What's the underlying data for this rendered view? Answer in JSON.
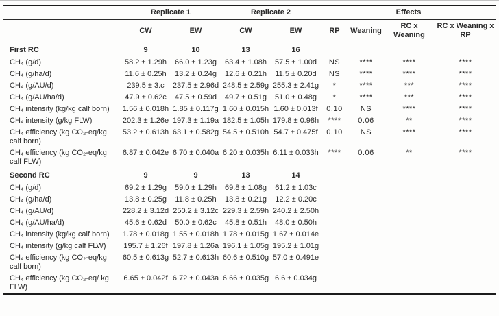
{
  "table": {
    "groups": [
      "Replicate 1",
      "Replicate 2",
      "Effects"
    ],
    "columns": [
      "CW",
      "EW",
      "CW",
      "EW",
      "RP",
      "Weaning",
      "RC x Weaning",
      "RC x Weaning x RP"
    ],
    "sections": [
      {
        "title": "First RC",
        "counts": [
          "9",
          "10",
          "13",
          "16"
        ],
        "rows": [
          {
            "label": "CH₄ (g/d)",
            "values": [
              "58.2 ± 1.29h",
              "66.0 ± 1.23g",
              "63.4 ± 1.08h",
              "57.5 ± 1.00d"
            ],
            "effects": [
              "NS",
              "****",
              "****",
              "****"
            ]
          },
          {
            "label": "CH₄ (g/ha/d)",
            "values": [
              "11.6 ± 0.25h",
              "13.2 ± 0.24g",
              "12.6 ± 0.21h",
              "11.5 ± 0.20d"
            ],
            "effects": [
              "NS",
              "****",
              "****",
              "****"
            ]
          },
          {
            "label": "CH₄ (g/AU/d)",
            "values": [
              "239.5 ± 3.c",
              "237.5 ± 2.96d",
              "248.5 ± 2.59g",
              "255.3 ± 2.41g"
            ],
            "effects": [
              "*",
              "****",
              "***",
              "****"
            ]
          },
          {
            "label": "CH₄ (g/AU/ha/d)",
            "values": [
              "47.9 ± 0.62c",
              "47.5 ± 0.59d",
              "49.7 ± 0.51g",
              "51.0 ± 0.48g"
            ],
            "effects": [
              "*",
              "****",
              "***",
              "****"
            ]
          },
          {
            "label": "CH₄ intensity (kg/kg calf born)",
            "values": [
              "1.56 ± 0.018h",
              "1.85 ± 0.117g",
              "1.60 ± 0.015h",
              "1.60 ± 0.013f"
            ],
            "effects": [
              "0.10",
              "NS",
              "****",
              "****"
            ]
          },
          {
            "label": "CH₄ intensity (g/kg FLW)",
            "values": [
              "202.3 ± 1.26e",
              "197.3 ± 1.19a",
              "182.5 ± 1.05h",
              "179.8 ± 0.98h"
            ],
            "effects": [
              "****",
              "0.06",
              "**",
              "****"
            ]
          },
          {
            "label": "CH₄ efficiency (kg CO₂-eq/kg calf born)",
            "values": [
              "53.2 ± 0.613h",
              "63.1 ± 0.582g",
              "54.5 ± 0.510h",
              "54.7 ± 0.475f"
            ],
            "effects": [
              "0.10",
              "NS",
              "****",
              "****"
            ]
          },
          {
            "label": "CH₄ efficiency (kg CO₂-eq/kg calf FLW)",
            "values": [
              "6.87 ± 0.042e",
              "6.70 ± 0.040a",
              "6.20 ± 0.035h",
              "6.11 ± 0.033h"
            ],
            "effects": [
              "****",
              "0.06",
              "**",
              "****"
            ]
          }
        ]
      },
      {
        "title": "Second RC",
        "counts": [
          "9",
          "9",
          "13",
          "14"
        ],
        "rows": [
          {
            "label": "CH₄ (g/d)",
            "values": [
              "69.2 ± 1.29g",
              "59.0 ± 1.29h",
              "69.8 ± 1.08g",
              "61.2 ± 1.03c"
            ],
            "effects": [
              "",
              "",
              "",
              ""
            ]
          },
          {
            "label": "CH₄ (g/ha/d)",
            "values": [
              "13.8 ± 0.25g",
              "11.8 ± 0.25h",
              "13.8 ± 0.21g",
              "12.2 ± 0.20c"
            ],
            "effects": [
              "",
              "",
              "",
              ""
            ]
          },
          {
            "label": "CH₄ (g/AU/d)",
            "values": [
              "228.2 ± 3.12d",
              "250.2 ± 3.12c",
              "229.3 ± 2.59h",
              "240.2 ± 2.50h"
            ],
            "effects": [
              "",
              "",
              "",
              ""
            ]
          },
          {
            "label": "CH₄ (g/AU/ha/d)",
            "values": [
              "45.6 ± 0.62d",
              "50.0 ± 0.62c",
              "45.8 ± 0.51h",
              "48.0 ± 0.50h"
            ],
            "effects": [
              "",
              "",
              "",
              ""
            ]
          },
          {
            "label": "CH₄ intensity (kg/kg calf born)",
            "values": [
              "1.78 ± 0.018g",
              "1.55 ± 0.018h",
              "1.78 ± 0.015g",
              "1.67 ± 0.014e"
            ],
            "effects": [
              "",
              "",
              "",
              ""
            ]
          },
          {
            "label": "CH₄ intensity (g/kg calf FLW)",
            "values": [
              "195.7 ± 1.26f",
              "197.8 ± 1.26a",
              "196.1 ± 1.05g",
              "195.2 ± 1.01g"
            ],
            "effects": [
              "",
              "",
              "",
              ""
            ]
          },
          {
            "label": "CH₄ efficiency (kg CO₂-eq/kg calf born)",
            "values": [
              "60.5 ± 0.613g",
              "52.7 ± 0.613h",
              "60.6 ± 0.510g",
              "57.0 ± 0.491e"
            ],
            "effects": [
              "",
              "",
              "",
              ""
            ]
          },
          {
            "label": "CH₄ efficiency (kg CO₂-eq/ kg FLW)",
            "values": [
              "6.65 ± 0.042f",
              "6.72 ± 0.043a",
              "6.66 ± 0.035g",
              "6.6 ± 0.034g"
            ],
            "effects": [
              "",
              "",
              "",
              ""
            ]
          }
        ]
      }
    ]
  }
}
